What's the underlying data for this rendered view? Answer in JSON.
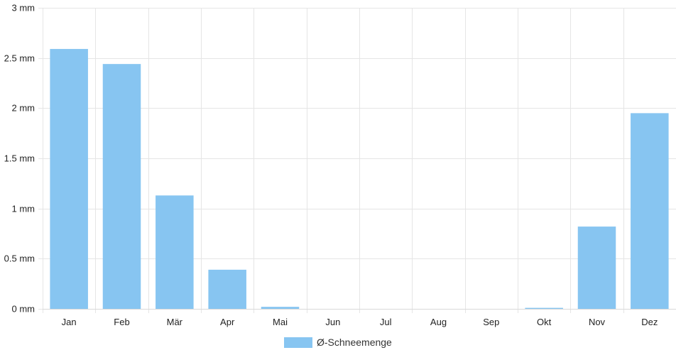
{
  "chart_data": {
    "type": "bar",
    "categories": [
      "Jan",
      "Feb",
      "Mär",
      "Apr",
      "Mai",
      "Jun",
      "Jul",
      "Aug",
      "Sep",
      "Okt",
      "Nov",
      "Dez"
    ],
    "series": [
      {
        "name": "Ø-Schneemenge",
        "color": "#87c5f1",
        "values": [
          2.59,
          2.44,
          1.13,
          0.39,
          0.02,
          0,
          0,
          0,
          0,
          0.01,
          0.82,
          1.95
        ]
      }
    ],
    "ylim": [
      0,
      3
    ],
    "yticks": [
      0,
      0.5,
      1,
      1.5,
      2,
      2.5,
      3
    ],
    "ytick_labels": [
      "0 mm",
      "0.5 mm",
      "1 mm",
      "1.5 mm",
      "2 mm",
      "2.5 mm",
      "3 mm"
    ],
    "grid": true,
    "legend": {
      "position": "bottom-center",
      "label": "Ø-Schneemenge"
    }
  }
}
